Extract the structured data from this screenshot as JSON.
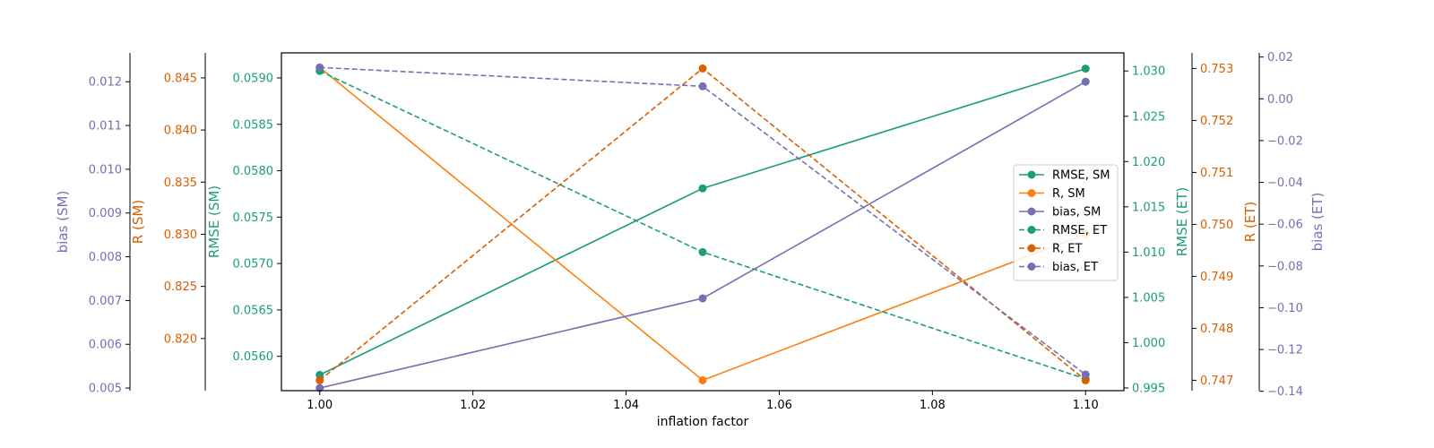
{
  "chart_data": {
    "type": "line",
    "xlabel": "inflation factor",
    "x": [
      1.0,
      1.05,
      1.1
    ],
    "xlim": [
      0.995,
      1.105
    ],
    "xticks": [
      1.0,
      1.02,
      1.04,
      1.06,
      1.08,
      1.1
    ],
    "xtick_labels": [
      "1.00",
      "1.02",
      "1.04",
      "1.06",
      "1.08",
      "1.10"
    ],
    "legend": "center-right",
    "grid": false,
    "axes": [
      {
        "id": "bias_sm",
        "label": "bias (SM)",
        "side": "left",
        "color": "#7570b3",
        "ylim": [
          0.00494,
          0.01266
        ],
        "ticks": [
          0.005,
          0.006,
          0.007,
          0.008,
          0.009,
          0.01,
          0.011,
          0.012
        ],
        "tick_labels": [
          "0.005",
          "0.006",
          "0.007",
          "0.008",
          "0.009",
          "0.010",
          "0.011",
          "0.012"
        ]
      },
      {
        "id": "r_sm",
        "label": "R (SM)",
        "side": "left",
        "color": "#d95f02",
        "ylim": [
          0.815,
          0.8474
        ],
        "ticks": [
          0.82,
          0.825,
          0.83,
          0.835,
          0.84,
          0.845
        ],
        "tick_labels": [
          "0.820",
          "0.825",
          "0.830",
          "0.835",
          "0.840",
          "0.845"
        ]
      },
      {
        "id": "rmse_sm",
        "label": "RMSE (SM)",
        "side": "left",
        "color": "#1b9e77",
        "ylim": [
          0.05563,
          0.05927
        ],
        "ticks": [
          0.056,
          0.0565,
          0.057,
          0.0575,
          0.058,
          0.0585,
          0.059
        ],
        "tick_labels": [
          "0.0560",
          "0.0565",
          "0.0570",
          "0.0575",
          "0.0580",
          "0.0585",
          "0.0590"
        ]
      },
      {
        "id": "rmse_et",
        "label": "RMSE (ET)",
        "side": "right",
        "color": "#1b9e77",
        "ylim": [
          0.9947,
          1.032
        ],
        "ticks": [
          0.995,
          1.0,
          1.005,
          1.01,
          1.015,
          1.02,
          1.025,
          1.03
        ],
        "tick_labels": [
          "0.995",
          "1.000",
          "1.005",
          "1.010",
          "1.015",
          "1.020",
          "1.025",
          "1.030"
        ]
      },
      {
        "id": "r_et",
        "label": "R (ET)",
        "side": "right",
        "color": "#d95f02",
        "ylim": [
          0.7468,
          0.7533
        ],
        "ticks": [
          0.747,
          0.748,
          0.749,
          0.75,
          0.751,
          0.752,
          0.753
        ],
        "tick_labels": [
          "0.747",
          "0.748",
          "0.749",
          "0.750",
          "0.751",
          "0.752",
          "0.753"
        ]
      },
      {
        "id": "bias_et",
        "label": "bias (ET)",
        "side": "right",
        "color": "#7570b3",
        "ylim": [
          -0.1397,
          0.022
        ],
        "ticks": [
          0.02,
          0.0,
          -0.02,
          -0.04,
          -0.06,
          -0.08,
          -0.1,
          -0.12,
          -0.14
        ],
        "tick_labels": [
          "0.02",
          "0.00",
          "−0.02",
          "−0.04",
          "−0.06",
          "−0.08",
          "−0.10",
          "−0.12",
          "−0.14"
        ]
      }
    ],
    "series": [
      {
        "name": "RMSE, SM",
        "axis": "rmse_sm",
        "color": "#1b9e77",
        "dashed": false,
        "values": [
          0.0558,
          0.05781,
          0.0591
        ]
      },
      {
        "name": "R, SM",
        "axis": "r_sm",
        "color": "#ff7f0e",
        "dashed": false,
        "values": [
          0.846,
          0.816,
          0.83
        ]
      },
      {
        "name": "bias, SM",
        "axis": "bias_sm",
        "color": "#7570b3",
        "dashed": false,
        "values": [
          0.005,
          0.00705,
          0.012
        ]
      },
      {
        "name": "RMSE, ET",
        "axis": "rmse_et",
        "color": "#1b9e77",
        "dashed": true,
        "values": [
          1.03,
          1.01,
          0.996
        ]
      },
      {
        "name": "R, ET",
        "axis": "r_et",
        "color": "#d95f02",
        "dashed": true,
        "values": [
          0.747,
          0.753,
          0.747
        ]
      },
      {
        "name": "bias, ET",
        "axis": "bias_et",
        "color": "#7570b3",
        "dashed": true,
        "values": [
          0.015,
          0.006,
          -0.132
        ]
      }
    ]
  }
}
